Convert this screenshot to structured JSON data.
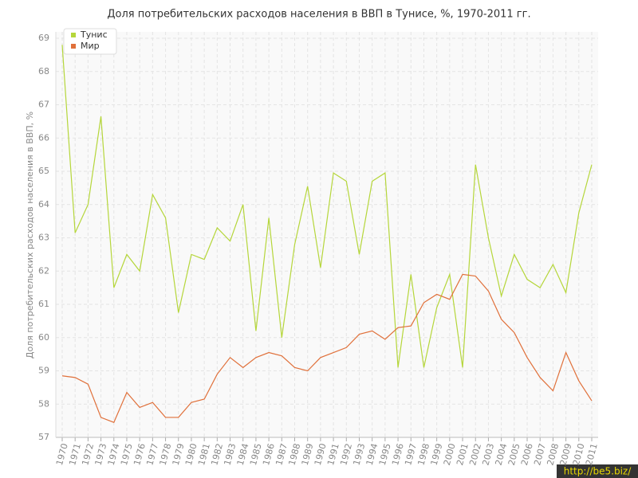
{
  "chart_data": {
    "type": "line",
    "title": "Доля потребительских расходов населения в ВВП в Тунисе, %, 1970-2011 гг.",
    "y_label": "Доля потребительских расходов населения в ВВП, %",
    "watermark": "http://be5.biz/",
    "categories": [
      "1970",
      "1971",
      "1972",
      "1973",
      "1974",
      "1975",
      "1976",
      "1977",
      "1978",
      "1979",
      "1980",
      "1981",
      "1982",
      "1983",
      "1984",
      "1985",
      "1986",
      "1987",
      "1988",
      "1989",
      "1990",
      "1991",
      "1992",
      "1993",
      "1994",
      "1995",
      "1996",
      "1997",
      "1998",
      "1999",
      "2000",
      "2001",
      "2002",
      "2003",
      "2004",
      "2005",
      "2006",
      "2007",
      "2008",
      "2009",
      "2010",
      "2011"
    ],
    "series": [
      {
        "name": "Тунис",
        "color": "#b5d63a",
        "values": [
          68.8,
          63.15,
          64.0,
          66.65,
          61.5,
          62.5,
          62.0,
          64.3,
          63.6,
          60.75,
          62.5,
          62.35,
          63.3,
          62.9,
          64.0,
          60.2,
          63.6,
          60.0,
          62.8,
          64.55,
          62.1,
          64.95,
          64.7,
          62.5,
          64.7,
          64.95,
          59.1,
          61.9,
          59.1,
          60.9,
          61.9,
          59.1,
          65.2,
          63.0,
          61.25,
          62.5,
          61.75,
          61.5,
          62.2,
          61.35,
          63.75,
          65.2
        ]
      },
      {
        "name": "Мир",
        "color": "#e0703a",
        "values": [
          58.85,
          58.8,
          58.6,
          57.6,
          57.45,
          58.35,
          57.9,
          58.05,
          57.6,
          57.6,
          58.05,
          58.15,
          58.9,
          59.4,
          59.1,
          59.4,
          59.55,
          59.45,
          59.1,
          59.0,
          59.4,
          59.55,
          59.7,
          60.1,
          60.2,
          59.95,
          60.3,
          60.35,
          61.05,
          61.3,
          61.15,
          61.9,
          61.85,
          61.4,
          60.55,
          60.15,
          59.4,
          58.8,
          58.4,
          59.55,
          58.7,
          58.1
        ]
      }
    ],
    "ylim": [
      57,
      69
    ],
    "yticks": [
      57,
      58,
      59,
      60,
      61,
      62,
      63,
      64,
      65,
      66,
      67,
      68,
      69
    ],
    "grid": true
  }
}
